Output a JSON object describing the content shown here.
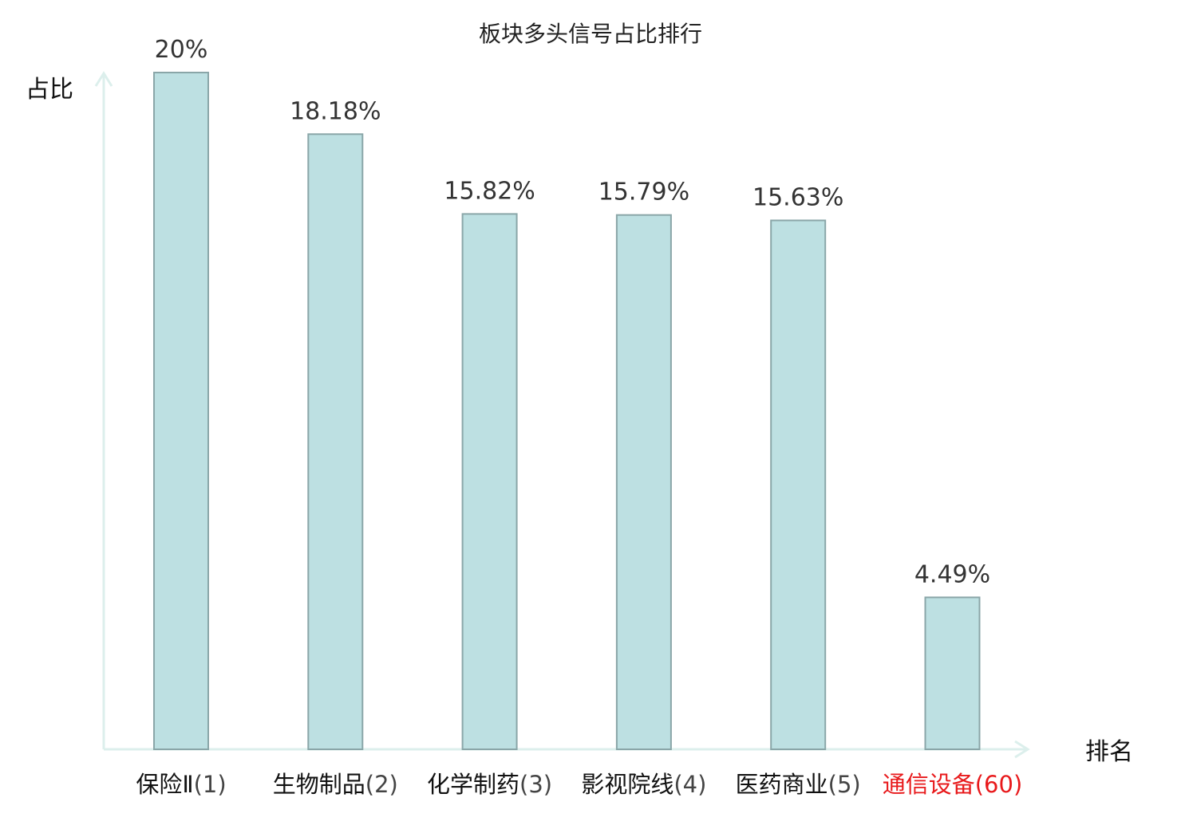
{
  "chart_data": {
    "type": "bar",
    "title": "板块多头信号占比排行",
    "ylabel": "占比",
    "xlabel": "排名",
    "ylim": [
      0,
      20
    ],
    "grid": false,
    "categories": [
      {
        "name": "保险Ⅱ",
        "rank": "(1)",
        "highlight": false
      },
      {
        "name": "生物制品",
        "rank": "(2)",
        "highlight": false
      },
      {
        "name": "化学制药",
        "rank": "(3)",
        "highlight": false
      },
      {
        "name": "影视院线",
        "rank": "(4)",
        "highlight": false
      },
      {
        "name": "医药商业",
        "rank": "(5)",
        "highlight": false
      },
      {
        "name": "通信设备",
        "rank": "(60)",
        "highlight": true
      }
    ],
    "values": [
      20,
      18.18,
      15.82,
      15.79,
      15.63,
      4.49
    ],
    "value_labels": [
      "20%",
      "18.18%",
      "15.82%",
      "15.79%",
      "15.63%",
      "4.49%"
    ]
  },
  "colors": {
    "bar_fill": "#bde0e2",
    "bar_stroke": "#8aa6a8",
    "axis": "#dcefec",
    "text": "#111111",
    "value_text": "#333333",
    "highlight": "#e8191b"
  }
}
